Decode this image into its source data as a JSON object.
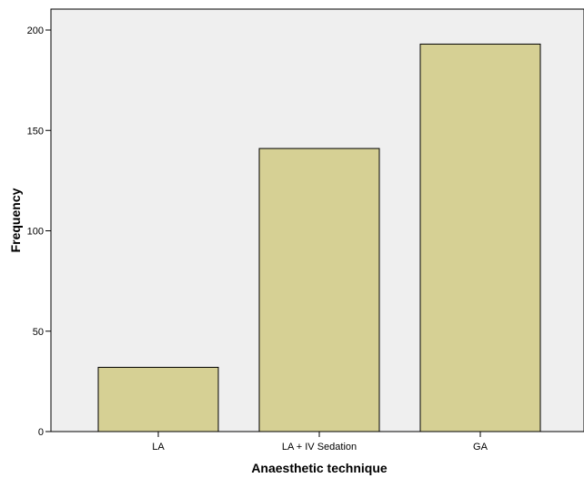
{
  "chart_data": {
    "type": "bar",
    "categories": [
      "LA",
      "LA + IV Sedation",
      "GA"
    ],
    "values": [
      32,
      141,
      193
    ],
    "xlabel": "Anaesthetic technique",
    "ylabel": "Frequency",
    "ylim": [
      0,
      210
    ],
    "yticks": [
      0,
      50,
      100,
      150,
      200
    ],
    "grid": false,
    "colors": {
      "bar_fill": "#d6d094",
      "bar_stroke": "#000000",
      "plot_background": "#efefef"
    }
  }
}
